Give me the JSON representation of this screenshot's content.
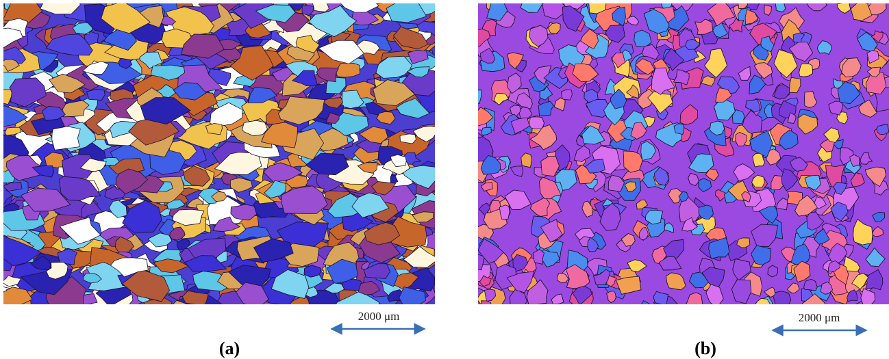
{
  "panels": [
    {
      "label": "(a)",
      "scale_bar": "2000 μm"
    },
    {
      "label": "(b)",
      "scale_bar": "2000 μm"
    }
  ]
}
